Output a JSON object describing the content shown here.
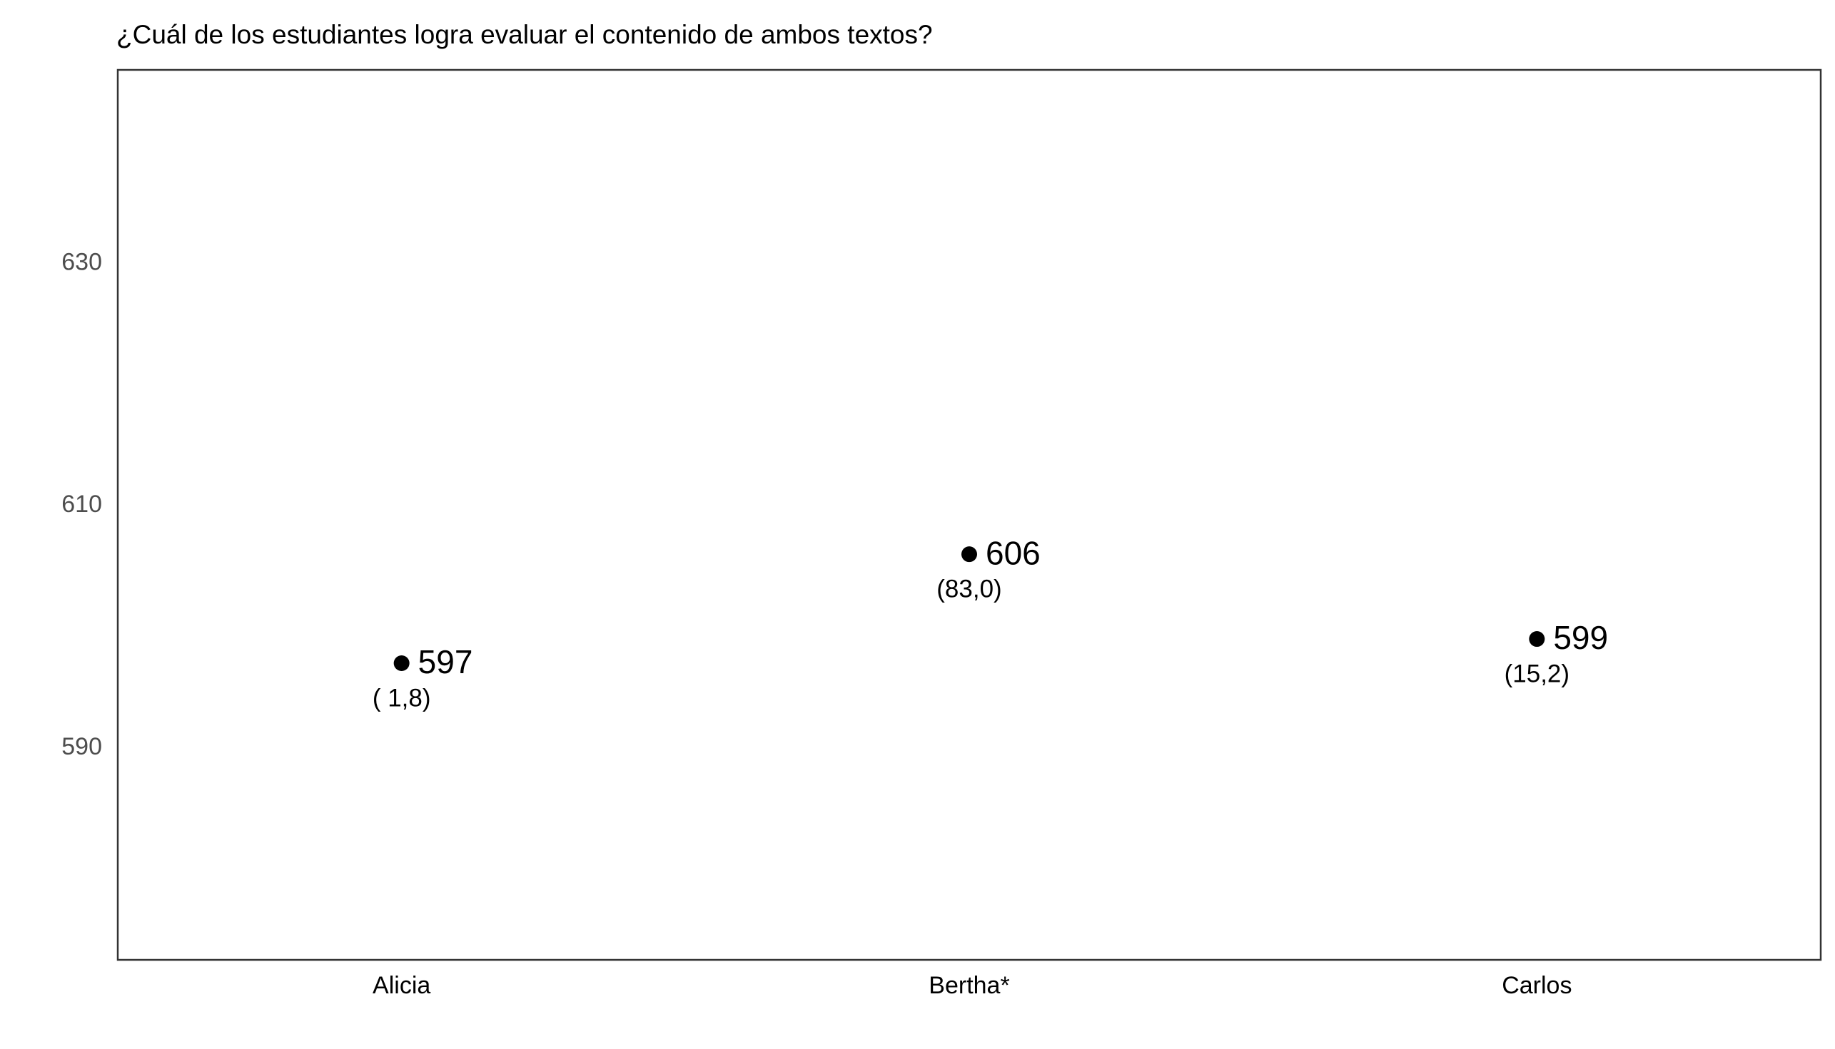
{
  "chart_data": {
    "type": "scatter",
    "title": "¿Cuál de los estudiantes logra evaluar el contenido de ambos textos?",
    "xlabel": "",
    "ylabel": "",
    "categories": [
      "Alicia",
      "Bertha*",
      "Carlos"
    ],
    "series": [
      {
        "values": [
          597,
          606,
          599
        ],
        "value_labels": [
          "597",
          "606",
          "599"
        ],
        "secondary_labels": [
          "( 1,8)",
          "(83,0)",
          "(15,2)"
        ]
      }
    ],
    "ylim": [
      572.5,
      646
    ],
    "yticks": [
      590,
      610,
      630
    ],
    "ytick_labels": [
      "590",
      "610",
      "630"
    ],
    "grid": false,
    "legend": "none",
    "colors": {
      "point": "#000000",
      "axis_text": "#4d4d4d",
      "panel_border": "#333333"
    }
  }
}
